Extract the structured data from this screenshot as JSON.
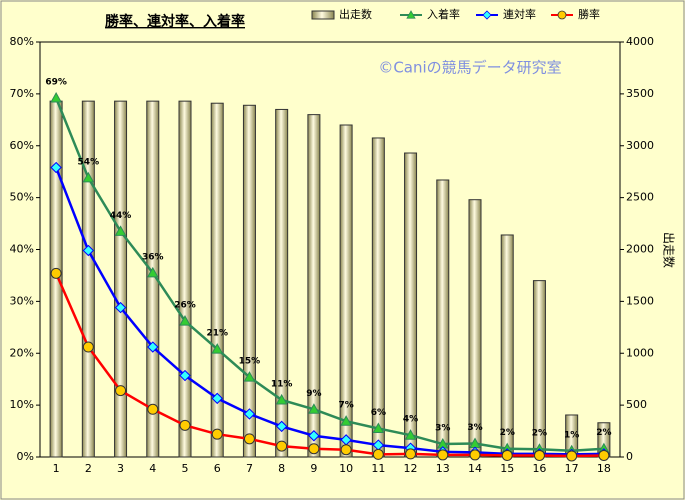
{
  "chart_data": {
    "type": "bar",
    "title": "勝率、連対率、入着率",
    "watermark": "©Caniの競馬データ研究室",
    "y2_label": "出走数",
    "categories": [
      "1",
      "2",
      "3",
      "4",
      "5",
      "6",
      "7",
      "8",
      "9",
      "10",
      "11",
      "12",
      "13",
      "14",
      "15",
      "16",
      "17",
      "18"
    ],
    "ylim": [
      0,
      80
    ],
    "yticks": [
      {
        "value": 0,
        "label": "0%"
      },
      {
        "value": 10,
        "label": "10%"
      },
      {
        "value": 20,
        "label": "20%"
      },
      {
        "value": 30,
        "label": "30%"
      },
      {
        "value": 40,
        "label": "40%"
      },
      {
        "value": 50,
        "label": "50%"
      },
      {
        "value": 60,
        "label": "60%"
      },
      {
        "value": 70,
        "label": "70%"
      },
      {
        "value": 80,
        "label": "80%"
      }
    ],
    "y2lim": [
      0,
      4000
    ],
    "y2ticks": [
      0,
      500,
      1000,
      1500,
      2000,
      2500,
      3000,
      3500,
      4000
    ],
    "series": [
      {
        "name": "出走数",
        "type": "bar",
        "axis": "y2",
        "color": "#e6e2a0",
        "values": [
          3430,
          3430,
          3430,
          3430,
          3430,
          3410,
          3390,
          3350,
          3300,
          3200,
          3075,
          2930,
          2670,
          2480,
          2140,
          1700,
          405,
          330
        ]
      },
      {
        "name": "入着率",
        "type": "line",
        "marker": "triangle",
        "color": "#2e8b57",
        "marker_color": "#33cc33",
        "values": [
          69.2,
          53.8,
          43.5,
          35.5,
          26.2,
          20.8,
          15.4,
          11.0,
          9.2,
          6.9,
          5.5,
          4.2,
          2.5,
          2.6,
          1.6,
          1.5,
          1.2,
          1.6
        ],
        "value_labels": [
          "69%",
          "54%",
          "44%",
          "36%",
          "26%",
          "21%",
          "15%",
          "11%",
          "9%",
          "7%",
          "6%",
          "4%",
          "3%",
          "3%",
          "2%",
          "2%",
          "1%",
          "2%"
        ]
      },
      {
        "name": "連対率",
        "type": "line",
        "marker": "diamond",
        "color": "#0000ff",
        "marker_color": "#33ffff",
        "values": [
          55.8,
          39.8,
          28.8,
          21.2,
          15.7,
          11.3,
          8.3,
          5.9,
          4.1,
          3.3,
          2.3,
          1.7,
          1.0,
          0.9,
          0.6,
          0.6,
          0.5,
          0.6
        ]
      },
      {
        "name": "勝率",
        "type": "line",
        "marker": "circle",
        "color": "#ff0000",
        "marker_color": "#ffcc00",
        "values": [
          35.4,
          21.2,
          12.8,
          9.2,
          6.1,
          4.4,
          3.5,
          2.1,
          1.6,
          1.4,
          0.5,
          0.6,
          0.4,
          0.4,
          0.3,
          0.3,
          0.2,
          0.3
        ]
      }
    ]
  }
}
